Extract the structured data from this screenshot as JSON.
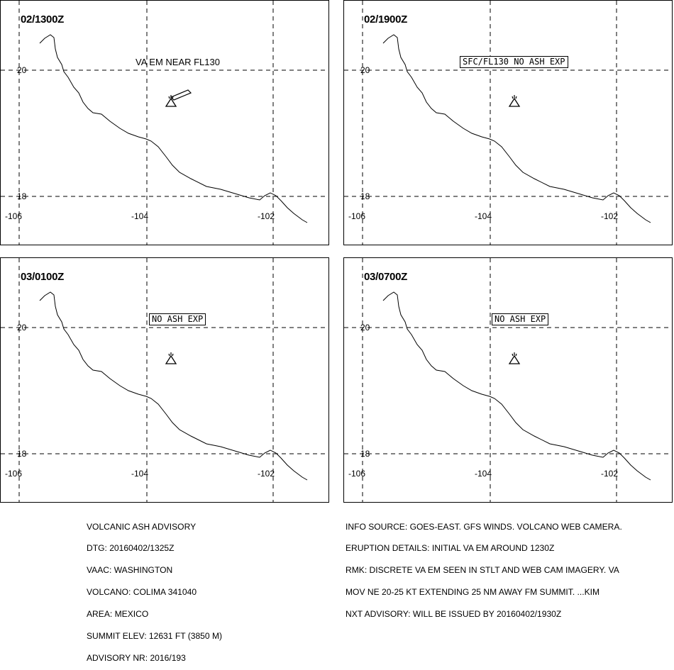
{
  "panels": [
    {
      "time": "02/1300Z",
      "note": "VA EM NEAR FL130",
      "note_style": "plain",
      "has_plume": true
    },
    {
      "time": "02/1900Z",
      "note": "SFC/FL130 NO ASH EXP",
      "note_style": "boxed",
      "has_plume": false
    },
    {
      "time": "03/0100Z",
      "note": "NO ASH EXP",
      "note_style": "boxed",
      "has_plume": false
    },
    {
      "time": "03/0700Z",
      "note": "NO ASH EXP",
      "note_style": "boxed",
      "has_plume": false
    }
  ],
  "map": {
    "lat_labels": [
      "20",
      "18"
    ],
    "lon_labels": [
      "-106",
      "-104",
      "-102"
    ]
  },
  "volcano_icon": "volcano-triangle-icon",
  "advisory_left": [
    "VOLCANIC ASH ADVISORY",
    "DTG: 20160402/1325Z",
    "VAAC: WASHINGTON",
    "VOLCANO: COLIMA 341040",
    "AREA: MEXICO",
    "SUMMIT ELEV: 12631 FT (3850 M)",
    "ADVISORY NR: 2016/193"
  ],
  "advisory_right": [
    "INFO SOURCE: GOES-EAST. GFS WINDS. VOLCANO WEB CAMERA.",
    "ERUPTION DETAILS: INITIAL VA EM AROUND 1230Z",
    "RMK: DISCRETE VA EM SEEN IN STLT AND WEB CAM IMAGERY. VA",
    "MOV NE 20-25 KT EXTENDING 25 NM AWAY FM SUMMIT. ...KIM",
    "NXT ADVISORY: WILL BE ISSUED BY 20160402/1930Z"
  ]
}
